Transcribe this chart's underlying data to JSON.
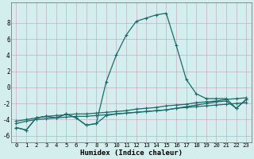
{
  "xlabel": "Humidex (Indice chaleur)",
  "xlim": [
    -0.5,
    23.5
  ],
  "ylim": [
    -6.8,
    10.5
  ],
  "xticks": [
    0,
    1,
    2,
    3,
    4,
    5,
    6,
    7,
    8,
    9,
    10,
    11,
    12,
    13,
    14,
    15,
    16,
    17,
    18,
    19,
    20,
    21,
    22,
    23
  ],
  "yticks": [
    -6,
    -4,
    -2,
    0,
    2,
    4,
    6,
    8
  ],
  "bg_color": "#d4eeed",
  "grid_color": "#c4afc4",
  "line_color": "#1a6b6b",
  "series_main": [
    -5.0,
    -5.3,
    -3.8,
    -3.6,
    -3.8,
    -3.3,
    -3.8,
    -4.7,
    -4.5,
    0.7,
    4.0,
    6.5,
    8.2,
    8.6,
    9.0,
    9.2,
    5.2,
    1.0,
    -0.8,
    -1.4,
    -1.4,
    -1.4,
    -2.6,
    -1.5
  ],
  "series_lin1": [
    -4.2,
    -4.0,
    -3.8,
    -3.6,
    -3.5,
    -3.4,
    -3.3,
    -3.3,
    -3.2,
    -3.1,
    -3.0,
    -2.9,
    -2.7,
    -2.6,
    -2.5,
    -2.3,
    -2.2,
    -2.1,
    -1.9,
    -1.8,
    -1.7,
    -1.5,
    -1.4,
    -1.3
  ],
  "series_lin2": [
    -4.5,
    -4.2,
    -4.0,
    -3.9,
    -3.8,
    -3.7,
    -3.6,
    -3.6,
    -3.5,
    -3.4,
    -3.3,
    -3.2,
    -3.1,
    -3.0,
    -2.9,
    -2.8,
    -2.6,
    -2.5,
    -2.4,
    -2.3,
    -2.2,
    -2.1,
    -2.0,
    -1.9
  ],
  "series_main2": [
    -5.0,
    -5.3,
    -3.8,
    -3.6,
    -3.8,
    -3.3,
    -3.8,
    -4.7,
    -4.5,
    -3.5,
    -3.3,
    -3.2,
    -3.1,
    -3.0,
    -2.9,
    -2.8,
    -2.6,
    -2.4,
    -2.2,
    -2.0,
    -1.8,
    -1.7,
    -2.6,
    -1.5
  ],
  "linewidth": 0.9,
  "markersize": 3.5
}
